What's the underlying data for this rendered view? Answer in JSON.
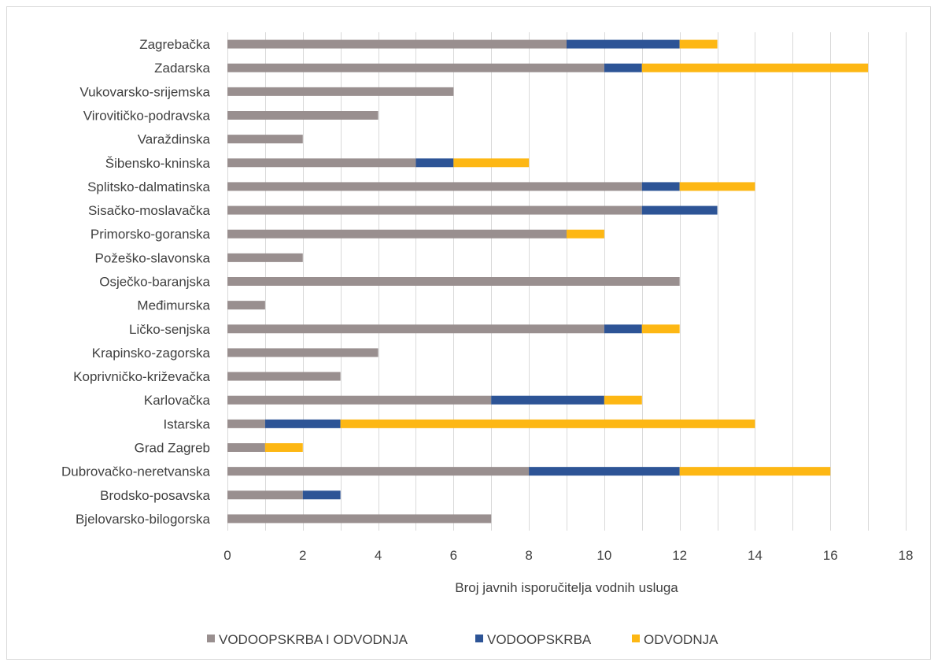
{
  "chart_data": {
    "type": "bar",
    "orientation": "horizontal",
    "stacked": true,
    "categories": [
      "Zagrebačka",
      "Zadarska",
      "Vukovarsko-srijemska",
      "Virovitičko-podravska",
      "Varaždinska",
      "Šibensko-kninska",
      "Splitsko-dalmatinska",
      "Sisačko-moslavačka",
      "Primorsko-goranska",
      "Požeško-slavonska",
      "Osječko-baranjska",
      "Međimurska",
      "Ličko-senjska",
      "Krapinsko-zagorska",
      "Koprivničko-križevačka",
      "Karlovačka",
      "Istarska",
      "Grad Zagreb",
      "Dubrovačko-neretvanska",
      "Brodsko-posavska",
      "Bjelovarsko-bilogorska"
    ],
    "series": [
      {
        "name": "VODOOPSKRBA I ODVODNJA",
        "color": "#998f8f",
        "values": [
          9,
          10,
          6,
          4,
          2,
          5,
          11,
          11,
          9,
          2,
          12,
          1,
          10,
          4,
          3,
          7,
          1,
          1,
          8,
          2,
          7
        ]
      },
      {
        "name": "VODOOPSKRBA",
        "color": "#2d5496",
        "values": [
          3,
          1,
          0,
          0,
          0,
          1,
          1,
          2,
          0,
          0,
          0,
          0,
          1,
          0,
          0,
          3,
          2,
          0,
          4,
          1,
          0
        ]
      },
      {
        "name": "ODVODNJA",
        "color": "#fdb714",
        "values": [
          1,
          6,
          0,
          0,
          0,
          2,
          2,
          0,
          1,
          0,
          0,
          0,
          1,
          0,
          0,
          1,
          11,
          1,
          4,
          0,
          0
        ]
      }
    ],
    "xticks": [
      "0",
      "2",
      "4",
      "6",
      "8",
      "10",
      "12",
      "14",
      "16",
      "18"
    ],
    "xlim": [
      0,
      18
    ],
    "xlabel": "Broj javnih isporučitelja vodnih usluga",
    "ylabel": "",
    "title": "",
    "grid": "vertical",
    "legend": "bottom"
  }
}
